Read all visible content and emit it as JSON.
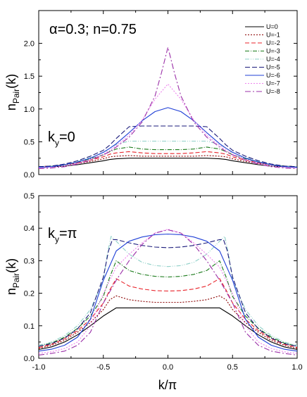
{
  "chart_data": [
    {
      "type": "line",
      "panel": "top",
      "annotation_main": "α=0.3; n=0.75",
      "annotation_ky": "k",
      "annotation_ky_sub": "y",
      "annotation_ky_val": "=0",
      "ylabel_main": "n",
      "ylabel_sub": "Pair",
      "ylabel_tail": "(k)",
      "xlim": [
        -1.0,
        1.0
      ],
      "ylim": [
        0.0,
        2.5
      ],
      "yticks": [
        "0.0",
        "0.5",
        "1.0",
        "1.5",
        "2.0"
      ],
      "legend_position": "top-right",
      "grid": false,
      "series": [
        {
          "name": "U=0",
          "color": "#000000",
          "dash": "",
          "x": [
            -1.0,
            -0.9,
            -0.8,
            -0.7,
            -0.6,
            -0.5,
            -0.45,
            -0.4,
            -0.3,
            -0.2,
            -0.1,
            0.0,
            0.1,
            0.2,
            0.3,
            0.4,
            0.45,
            0.5,
            0.6,
            0.7,
            0.8,
            0.9,
            1.0
          ],
          "y": [
            0.11,
            0.12,
            0.13,
            0.15,
            0.18,
            0.21,
            0.23,
            0.24,
            0.25,
            0.25,
            0.25,
            0.25,
            0.25,
            0.25,
            0.25,
            0.24,
            0.23,
            0.21,
            0.18,
            0.15,
            0.13,
            0.12,
            0.11
          ]
        },
        {
          "name": "U=-1",
          "color": "#8b0000",
          "dash": "2,2",
          "x": [
            -1.0,
            -0.9,
            -0.8,
            -0.7,
            -0.6,
            -0.5,
            -0.45,
            -0.4,
            -0.3,
            -0.2,
            -0.1,
            0.0,
            0.1,
            0.2,
            0.3,
            0.4,
            0.45,
            0.5,
            0.6,
            0.7,
            0.8,
            0.9,
            1.0
          ],
          "y": [
            0.12,
            0.13,
            0.15,
            0.17,
            0.2,
            0.24,
            0.27,
            0.28,
            0.29,
            0.28,
            0.28,
            0.28,
            0.28,
            0.28,
            0.29,
            0.28,
            0.27,
            0.24,
            0.2,
            0.17,
            0.15,
            0.13,
            0.12
          ]
        },
        {
          "name": "U=-2",
          "color": "#e8232a",
          "dash": "6,3",
          "x": [
            -1.0,
            -0.9,
            -0.8,
            -0.7,
            -0.6,
            -0.5,
            -0.45,
            -0.4,
            -0.3,
            -0.2,
            -0.1,
            0.0,
            0.1,
            0.2,
            0.3,
            0.4,
            0.45,
            0.5,
            0.6,
            0.7,
            0.8,
            0.9,
            1.0
          ],
          "y": [
            0.12,
            0.13,
            0.15,
            0.18,
            0.22,
            0.27,
            0.31,
            0.33,
            0.35,
            0.33,
            0.32,
            0.32,
            0.32,
            0.33,
            0.35,
            0.33,
            0.31,
            0.27,
            0.22,
            0.18,
            0.15,
            0.13,
            0.12
          ]
        },
        {
          "name": "U=-3",
          "color": "#1a7a1a",
          "dash": "6,2,1,2",
          "x": [
            -1.0,
            -0.9,
            -0.8,
            -0.7,
            -0.6,
            -0.5,
            -0.45,
            -0.4,
            -0.3,
            -0.2,
            -0.1,
            0.0,
            0.1,
            0.2,
            0.3,
            0.4,
            0.45,
            0.5,
            0.6,
            0.7,
            0.8,
            0.9,
            1.0
          ],
          "y": [
            0.12,
            0.13,
            0.15,
            0.19,
            0.24,
            0.3,
            0.35,
            0.39,
            0.42,
            0.39,
            0.38,
            0.38,
            0.38,
            0.39,
            0.42,
            0.39,
            0.35,
            0.3,
            0.24,
            0.19,
            0.15,
            0.13,
            0.12
          ]
        },
        {
          "name": "U=-4",
          "color": "#8fd0c8",
          "dash": "6,2,1,2,1,2",
          "x": [
            -1.0,
            -0.9,
            -0.8,
            -0.7,
            -0.6,
            -0.5,
            -0.45,
            -0.4,
            -0.3,
            -0.2,
            -0.1,
            0.0,
            0.1,
            0.2,
            0.3,
            0.4,
            0.45,
            0.5,
            0.6,
            0.7,
            0.8,
            0.9,
            1.0
          ],
          "y": [
            0.12,
            0.13,
            0.15,
            0.2,
            0.26,
            0.33,
            0.4,
            0.46,
            0.51,
            0.51,
            0.51,
            0.51,
            0.51,
            0.51,
            0.51,
            0.46,
            0.4,
            0.33,
            0.26,
            0.2,
            0.15,
            0.13,
            0.12
          ]
        },
        {
          "name": "U=-5",
          "color": "#1a1a7a",
          "dash": "7,3",
          "x": [
            -1.0,
            -0.9,
            -0.8,
            -0.7,
            -0.6,
            -0.5,
            -0.45,
            -0.4,
            -0.3,
            -0.2,
            -0.1,
            0.0,
            0.1,
            0.2,
            0.3,
            0.4,
            0.45,
            0.5,
            0.6,
            0.7,
            0.8,
            0.9,
            1.0
          ],
          "y": [
            0.12,
            0.13,
            0.16,
            0.21,
            0.28,
            0.37,
            0.45,
            0.55,
            0.73,
            0.74,
            0.74,
            0.74,
            0.74,
            0.74,
            0.73,
            0.55,
            0.45,
            0.37,
            0.28,
            0.21,
            0.16,
            0.13,
            0.12
          ]
        },
        {
          "name": "U=-6",
          "color": "#1f3fd6",
          "dash": "",
          "x": [
            -1.0,
            -0.9,
            -0.8,
            -0.7,
            -0.6,
            -0.5,
            -0.45,
            -0.4,
            -0.3,
            -0.2,
            -0.1,
            0.0,
            0.1,
            0.2,
            0.3,
            0.4,
            0.45,
            0.5,
            0.6,
            0.7,
            0.8,
            0.9,
            1.0
          ],
          "y": [
            0.11,
            0.12,
            0.15,
            0.19,
            0.25,
            0.34,
            0.4,
            0.47,
            0.64,
            0.82,
            0.96,
            1.02,
            0.96,
            0.82,
            0.64,
            0.47,
            0.4,
            0.34,
            0.25,
            0.19,
            0.15,
            0.12,
            0.11
          ]
        },
        {
          "name": "U=-7",
          "color": "#ee82ee",
          "dash": "2,2",
          "x": [
            -1.0,
            -0.9,
            -0.8,
            -0.7,
            -0.6,
            -0.5,
            -0.45,
            -0.4,
            -0.3,
            -0.2,
            -0.1,
            0.0,
            0.1,
            0.2,
            0.3,
            0.4,
            0.45,
            0.5,
            0.6,
            0.7,
            0.8,
            0.9,
            1.0
          ],
          "y": [
            0.1,
            0.11,
            0.13,
            0.17,
            0.23,
            0.31,
            0.37,
            0.44,
            0.6,
            0.83,
            1.15,
            1.38,
            1.15,
            0.83,
            0.6,
            0.44,
            0.37,
            0.31,
            0.23,
            0.17,
            0.13,
            0.11,
            0.1
          ]
        },
        {
          "name": "U=-8",
          "color": "#9b30a8",
          "dash": "8,3,2,3",
          "x": [
            -1.0,
            -0.9,
            -0.8,
            -0.7,
            -0.6,
            -0.5,
            -0.45,
            -0.4,
            -0.3,
            -0.2,
            -0.1,
            -0.05,
            0.0,
            0.05,
            0.1,
            0.2,
            0.3,
            0.4,
            0.45,
            0.5,
            0.6,
            0.7,
            0.8,
            0.9,
            1.0
          ],
          "y": [
            0.09,
            0.1,
            0.12,
            0.16,
            0.22,
            0.3,
            0.35,
            0.42,
            0.57,
            0.8,
            1.2,
            1.55,
            1.94,
            1.55,
            1.2,
            0.8,
            0.57,
            0.42,
            0.35,
            0.3,
            0.22,
            0.16,
            0.12,
            0.1,
            0.09
          ]
        }
      ]
    },
    {
      "type": "line",
      "panel": "bottom",
      "annotation_ky": "k",
      "annotation_ky_sub": "y",
      "annotation_ky_val": "=π",
      "ylabel_main": "n",
      "ylabel_sub": "Pair",
      "ylabel_tail": "(k)",
      "xlabel": "k/π",
      "xlim": [
        -1.0,
        1.0
      ],
      "ylim": [
        0.0,
        0.5
      ],
      "xticks": [
        "-1.0",
        "-0.5",
        "0.0",
        "0.5",
        "1.0"
      ],
      "yticks": [
        "0.0",
        "0.1",
        "0.2",
        "0.3",
        "0.4",
        "0.5"
      ],
      "grid": false,
      "series": [
        {
          "name": "U=0",
          "color": "#000000",
          "dash": "",
          "x": [
            -1.0,
            -0.9,
            -0.8,
            -0.7,
            -0.6,
            -0.5,
            -0.4,
            -0.3,
            -0.2,
            -0.1,
            0.0,
            0.1,
            0.2,
            0.3,
            0.4,
            0.5,
            0.6,
            0.7,
            0.8,
            0.9,
            1.0
          ],
          "y": [
            0.027,
            0.035,
            0.05,
            0.072,
            0.1,
            0.13,
            0.155,
            0.155,
            0.155,
            0.155,
            0.155,
            0.155,
            0.155,
            0.155,
            0.155,
            0.13,
            0.1,
            0.072,
            0.05,
            0.035,
            0.027
          ]
        },
        {
          "name": "U=-1",
          "color": "#8b0000",
          "dash": "2,2",
          "x": [
            -1.0,
            -0.9,
            -0.8,
            -0.7,
            -0.6,
            -0.5,
            -0.45,
            -0.4,
            -0.3,
            -0.2,
            -0.1,
            0.0,
            0.1,
            0.2,
            0.3,
            0.4,
            0.45,
            0.5,
            0.6,
            0.7,
            0.8,
            0.9,
            1.0
          ],
          "y": [
            0.03,
            0.04,
            0.055,
            0.08,
            0.11,
            0.15,
            0.18,
            0.192,
            0.18,
            0.175,
            0.172,
            0.172,
            0.172,
            0.175,
            0.18,
            0.192,
            0.18,
            0.15,
            0.11,
            0.08,
            0.055,
            0.04,
            0.03
          ]
        },
        {
          "name": "U=-2",
          "color": "#e8232a",
          "dash": "6,3",
          "x": [
            -1.0,
            -0.9,
            -0.8,
            -0.7,
            -0.6,
            -0.5,
            -0.45,
            -0.4,
            -0.3,
            -0.2,
            -0.1,
            0.0,
            0.1,
            0.2,
            0.3,
            0.4,
            0.45,
            0.5,
            0.6,
            0.7,
            0.8,
            0.9,
            1.0
          ],
          "y": [
            0.033,
            0.043,
            0.06,
            0.085,
            0.12,
            0.17,
            0.21,
            0.245,
            0.222,
            0.213,
            0.208,
            0.207,
            0.208,
            0.213,
            0.222,
            0.245,
            0.21,
            0.17,
            0.12,
            0.085,
            0.06,
            0.043,
            0.033
          ]
        },
        {
          "name": "U=-3",
          "color": "#1a7a1a",
          "dash": "6,2,1,2",
          "x": [
            -1.0,
            -0.9,
            -0.8,
            -0.7,
            -0.6,
            -0.5,
            -0.45,
            -0.4,
            -0.3,
            -0.2,
            -0.1,
            0.0,
            0.1,
            0.2,
            0.3,
            0.4,
            0.45,
            0.5,
            0.6,
            0.7,
            0.8,
            0.9,
            1.0
          ],
          "y": [
            0.037,
            0.047,
            0.065,
            0.092,
            0.13,
            0.19,
            0.25,
            0.3,
            0.27,
            0.258,
            0.252,
            0.25,
            0.252,
            0.258,
            0.27,
            0.3,
            0.25,
            0.19,
            0.13,
            0.092,
            0.065,
            0.047,
            0.037
          ]
        },
        {
          "name": "U=-4",
          "color": "#8fd0c8",
          "dash": "6,2,1,2,1,2",
          "x": [
            -1.0,
            -0.9,
            -0.8,
            -0.7,
            -0.6,
            -0.5,
            -0.47,
            -0.44,
            -0.4,
            -0.3,
            -0.2,
            -0.1,
            0.0,
            0.1,
            0.2,
            0.3,
            0.4,
            0.44,
            0.47,
            0.5,
            0.6,
            0.7,
            0.8,
            0.9,
            1.0
          ],
          "y": [
            0.04,
            0.05,
            0.07,
            0.1,
            0.15,
            0.24,
            0.32,
            0.375,
            0.36,
            0.32,
            0.295,
            0.285,
            0.282,
            0.285,
            0.295,
            0.32,
            0.36,
            0.375,
            0.32,
            0.24,
            0.15,
            0.1,
            0.07,
            0.05,
            0.04
          ]
        },
        {
          "name": "U=-5",
          "color": "#1a1a7a",
          "dash": "7,3",
          "x": [
            -1.0,
            -0.9,
            -0.8,
            -0.7,
            -0.6,
            -0.5,
            -0.46,
            -0.43,
            -0.4,
            -0.3,
            -0.2,
            -0.1,
            0.0,
            0.1,
            0.2,
            0.3,
            0.4,
            0.43,
            0.46,
            0.5,
            0.6,
            0.7,
            0.8,
            0.9,
            1.0
          ],
          "y": [
            0.037,
            0.045,
            0.062,
            0.09,
            0.14,
            0.25,
            0.33,
            0.365,
            0.365,
            0.355,
            0.347,
            0.342,
            0.34,
            0.342,
            0.347,
            0.355,
            0.365,
            0.365,
            0.33,
            0.25,
            0.14,
            0.09,
            0.062,
            0.045,
            0.037
          ]
        },
        {
          "name": "U=-6",
          "color": "#1f3fd6",
          "dash": "",
          "x": [
            -1.0,
            -0.9,
            -0.8,
            -0.7,
            -0.6,
            -0.5,
            -0.4,
            -0.3,
            -0.2,
            -0.1,
            0.0,
            0.1,
            0.2,
            0.3,
            0.4,
            0.5,
            0.6,
            0.7,
            0.8,
            0.9,
            1.0
          ],
          "y": [
            0.022,
            0.028,
            0.04,
            0.065,
            0.12,
            0.24,
            0.33,
            0.36,
            0.373,
            0.38,
            0.382,
            0.38,
            0.373,
            0.36,
            0.33,
            0.24,
            0.12,
            0.065,
            0.04,
            0.028,
            0.022
          ]
        },
        {
          "name": "U=-7",
          "color": "#ee82ee",
          "dash": "2,2",
          "x": [
            -1.0,
            -0.9,
            -0.8,
            -0.7,
            -0.6,
            -0.5,
            -0.4,
            -0.3,
            -0.2,
            -0.1,
            0.0,
            0.1,
            0.2,
            0.3,
            0.4,
            0.5,
            0.6,
            0.7,
            0.8,
            0.9,
            1.0
          ],
          "y": [
            0.015,
            0.02,
            0.03,
            0.05,
            0.1,
            0.2,
            0.28,
            0.32,
            0.355,
            0.385,
            0.397,
            0.385,
            0.355,
            0.32,
            0.28,
            0.2,
            0.1,
            0.05,
            0.03,
            0.02,
            0.015
          ]
        },
        {
          "name": "U=-8",
          "color": "#9b30a8",
          "dash": "8,3,2,3",
          "x": [
            -1.0,
            -0.9,
            -0.8,
            -0.7,
            -0.6,
            -0.5,
            -0.4,
            -0.3,
            -0.2,
            -0.1,
            0.0,
            0.1,
            0.2,
            0.3,
            0.4,
            0.5,
            0.6,
            0.7,
            0.8,
            0.9,
            1.0
          ],
          "y": [
            0.01,
            0.015,
            0.022,
            0.04,
            0.08,
            0.17,
            0.24,
            0.3,
            0.35,
            0.385,
            0.395,
            0.385,
            0.35,
            0.3,
            0.24,
            0.17,
            0.08,
            0.04,
            0.022,
            0.015,
            0.01
          ]
        }
      ]
    }
  ]
}
